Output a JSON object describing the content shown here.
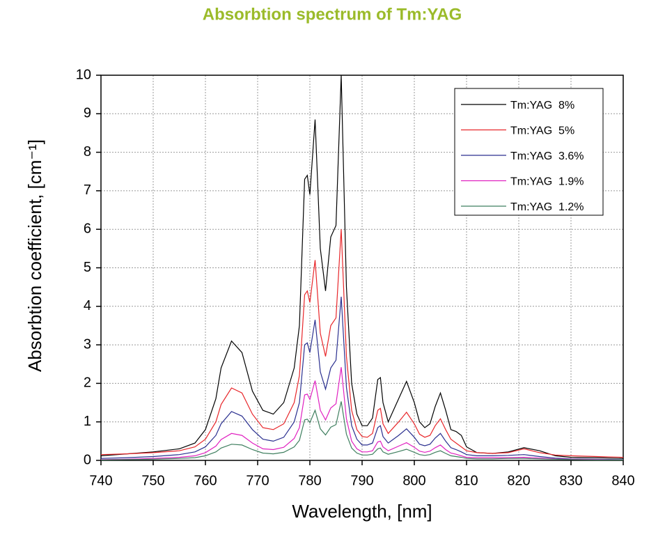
{
  "chart_data": {
    "type": "line",
    "title": "Absorbtion spectrum of Tm:YAG",
    "xlabel": "Wavelength, [nm]",
    "ylabel": "Absorbtion coefficient, [cm⁻¹]",
    "x": [
      740,
      745,
      750,
      755,
      758,
      760,
      762,
      763,
      765,
      767,
      769,
      771,
      773,
      775,
      777,
      778,
      779,
      779.5,
      780,
      781,
      782,
      783,
      784,
      785,
      786,
      787,
      788,
      789,
      790,
      791,
      792,
      793,
      793.5,
      794,
      795,
      797,
      798.5,
      800,
      801,
      802,
      803,
      804,
      805,
      806,
      807,
      808,
      809,
      810,
      812,
      815,
      818,
      821,
      824,
      827,
      830,
      835,
      840
    ],
    "series": [
      {
        "name": "Tm:YAG  8%",
        "color": "#000000",
        "values": [
          0.12,
          0.17,
          0.22,
          0.3,
          0.45,
          0.8,
          1.6,
          2.4,
          3.1,
          2.8,
          1.8,
          1.3,
          1.2,
          1.5,
          2.4,
          3.5,
          7.3,
          7.4,
          6.9,
          8.85,
          5.5,
          4.4,
          5.8,
          6.1,
          10.0,
          4.5,
          2.0,
          1.2,
          0.9,
          0.9,
          1.1,
          2.1,
          2.15,
          1.5,
          1.0,
          1.6,
          2.05,
          1.5,
          1.0,
          0.85,
          0.95,
          1.4,
          1.75,
          1.3,
          0.8,
          0.75,
          0.65,
          0.35,
          0.2,
          0.18,
          0.22,
          0.33,
          0.25,
          0.12,
          0.08,
          0.07,
          0.05
        ]
      },
      {
        "name": "Tm:YAG  5%",
        "color": "#e8262a",
        "values": [
          0.15,
          0.17,
          0.2,
          0.25,
          0.35,
          0.55,
          1.0,
          1.45,
          1.88,
          1.75,
          1.2,
          0.85,
          0.8,
          0.95,
          1.5,
          2.2,
          4.3,
          4.4,
          4.1,
          5.2,
          3.3,
          2.7,
          3.5,
          3.7,
          6.0,
          2.7,
          1.3,
          0.8,
          0.62,
          0.6,
          0.7,
          1.3,
          1.35,
          0.95,
          0.7,
          1.0,
          1.25,
          0.95,
          0.68,
          0.6,
          0.65,
          0.9,
          1.08,
          0.8,
          0.55,
          0.45,
          0.35,
          0.25,
          0.2,
          0.18,
          0.2,
          0.3,
          0.2,
          0.14,
          0.12,
          0.1,
          0.08
        ]
      },
      {
        "name": "Tm:YAG  3.6%",
        "color": "#2a2f8f",
        "values": [
          0.05,
          0.07,
          0.1,
          0.15,
          0.22,
          0.35,
          0.65,
          0.95,
          1.27,
          1.15,
          0.8,
          0.55,
          0.5,
          0.6,
          1.0,
          1.5,
          3.0,
          3.05,
          2.8,
          3.65,
          2.3,
          1.85,
          2.4,
          2.6,
          4.25,
          1.9,
          0.9,
          0.55,
          0.4,
          0.4,
          0.45,
          0.85,
          0.9,
          0.62,
          0.45,
          0.65,
          0.82,
          0.6,
          0.42,
          0.38,
          0.42,
          0.58,
          0.7,
          0.5,
          0.33,
          0.28,
          0.22,
          0.15,
          0.12,
          0.12,
          0.13,
          0.15,
          0.1,
          0.06,
          0.04,
          0.03,
          0.02
        ]
      },
      {
        "name": "Tm:YAG  1.9%",
        "color": "#e020c0",
        "values": [
          0.02,
          0.03,
          0.05,
          0.08,
          0.12,
          0.2,
          0.37,
          0.54,
          0.7,
          0.65,
          0.45,
          0.3,
          0.28,
          0.34,
          0.57,
          0.85,
          1.7,
          1.72,
          1.58,
          2.07,
          1.3,
          1.05,
          1.36,
          1.47,
          2.42,
          1.08,
          0.5,
          0.3,
          0.22,
          0.22,
          0.25,
          0.48,
          0.5,
          0.35,
          0.25,
          0.37,
          0.46,
          0.34,
          0.24,
          0.21,
          0.24,
          0.33,
          0.4,
          0.28,
          0.19,
          0.16,
          0.12,
          0.08,
          0.07,
          0.07,
          0.07,
          0.08,
          0.06,
          0.04,
          0.03,
          0.02,
          0.01
        ]
      },
      {
        "name": "Tm:YAG  1.2%",
        "color": "#3f7f5f",
        "values": [
          0.01,
          0.02,
          0.03,
          0.05,
          0.07,
          0.12,
          0.22,
          0.32,
          0.42,
          0.4,
          0.28,
          0.19,
          0.17,
          0.21,
          0.35,
          0.52,
          1.05,
          1.07,
          0.98,
          1.3,
          0.82,
          0.66,
          0.86,
          0.93,
          1.53,
          0.68,
          0.32,
          0.19,
          0.14,
          0.14,
          0.16,
          0.3,
          0.32,
          0.22,
          0.16,
          0.23,
          0.29,
          0.21,
          0.15,
          0.13,
          0.15,
          0.21,
          0.25,
          0.18,
          0.12,
          0.1,
          0.08,
          0.05,
          0.04,
          0.04,
          0.05,
          0.05,
          0.04,
          0.03,
          0.02,
          0.01,
          0.01
        ]
      }
    ],
    "xlim": [
      740,
      840
    ],
    "xticks": [
      740,
      750,
      760,
      770,
      780,
      790,
      800,
      810,
      820,
      830,
      840
    ],
    "ylim": [
      0,
      10
    ],
    "yticks": [
      0,
      1,
      2,
      3,
      4,
      5,
      6,
      7,
      8,
      9,
      10
    ],
    "grid": true,
    "legend": "upper right",
    "title_color": "#9bbb2a"
  }
}
